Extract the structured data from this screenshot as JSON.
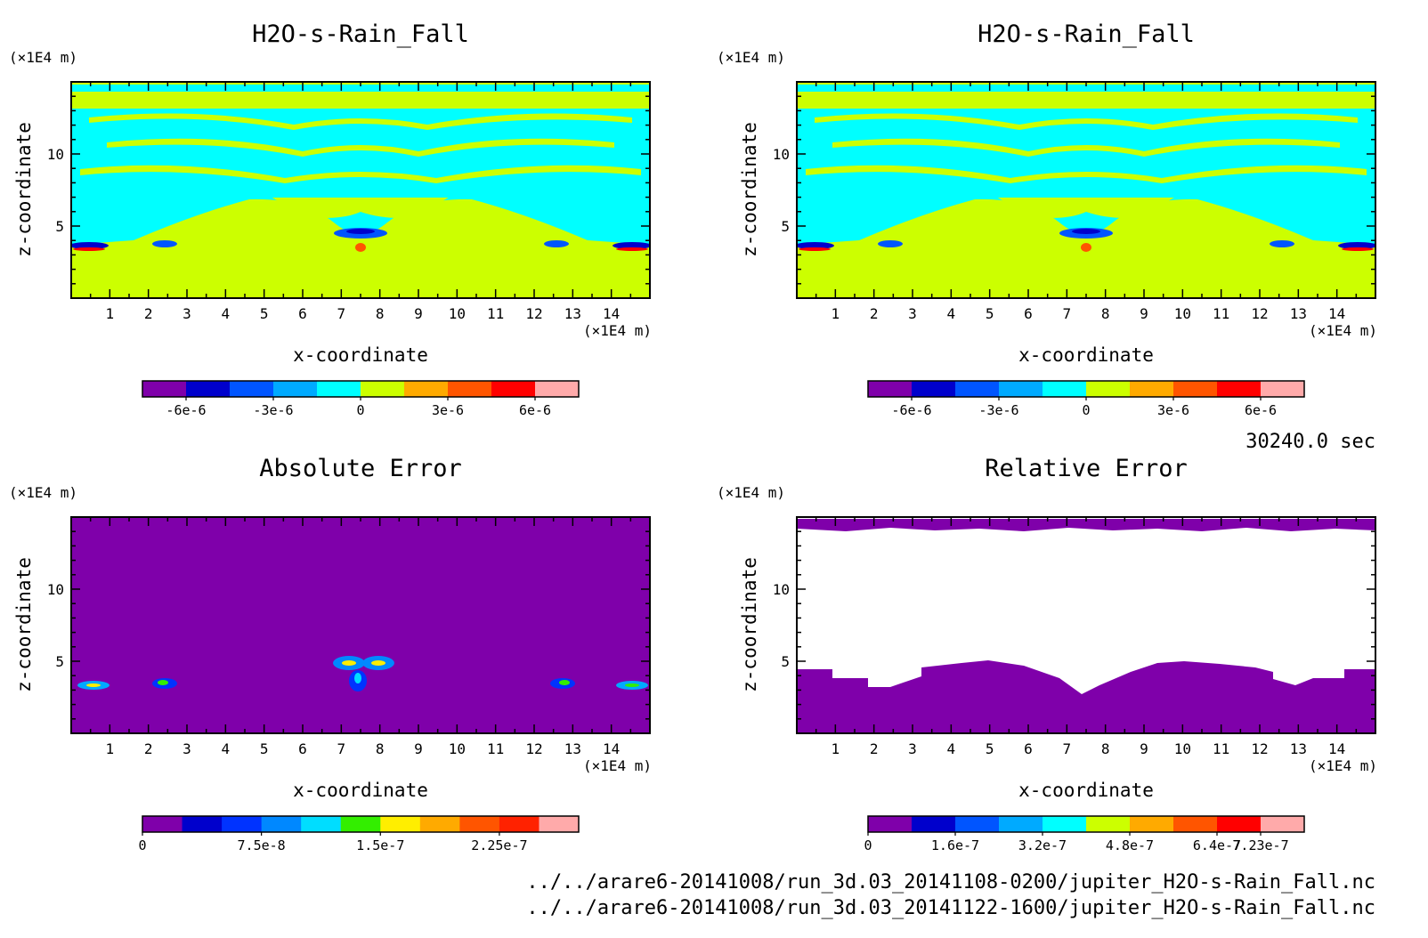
{
  "time_label": "30240.0 sec",
  "file_paths": [
    "../../arare6-20141008/run_3d.03_20141108-0200/jupiter_H2O-s-Rain_Fall.nc",
    "../../arare6-20141008/run_3d.03_20141122-1600/jupiter_H2O-s-Rain_Fall.nc"
  ],
  "colors": {
    "cyan": "#00ffff",
    "yellow_green": "#ccff00",
    "purple": "#7f00aa",
    "white": "#ffffff"
  },
  "chart_data": [
    {
      "type": "heatmap",
      "title": "H2O-s-Rain_Fall",
      "xlabel": "x-coordinate",
      "ylabel": "z-coordinate",
      "x_unit": "(×1E4 m)",
      "y_unit": "(×1E4 m)",
      "xlim": [
        0,
        15
      ],
      "ylim": [
        0,
        15
      ],
      "x_ticks": [
        1,
        2,
        3,
        4,
        5,
        6,
        7,
        8,
        9,
        10,
        11,
        12,
        13,
        14
      ],
      "y_ticks": [
        5,
        10
      ],
      "colorbar": {
        "colors": [
          "#7f00aa",
          "#0000cc",
          "#0055ff",
          "#00aaff",
          "#00ffff",
          "#ccff00",
          "#ffaa00",
          "#ff5500",
          "#ff0000",
          "#ffaaaa"
        ],
        "tick_labels": [
          "-6e-6",
          "-3e-6",
          "0",
          "3e-6",
          "6e-6"
        ],
        "tick_positions": [
          1,
          3,
          5,
          7,
          9
        ]
      }
    },
    {
      "type": "heatmap",
      "title": "H2O-s-Rain_Fall",
      "xlabel": "x-coordinate",
      "ylabel": "z-coordinate",
      "x_unit": "(×1E4 m)",
      "y_unit": "(×1E4 m)",
      "xlim": [
        0,
        15
      ],
      "ylim": [
        0,
        15
      ],
      "x_ticks": [
        1,
        2,
        3,
        4,
        5,
        6,
        7,
        8,
        9,
        10,
        11,
        12,
        13,
        14
      ],
      "y_ticks": [
        5,
        10
      ],
      "colorbar": {
        "colors": [
          "#7f00aa",
          "#0000cc",
          "#0055ff",
          "#00aaff",
          "#00ffff",
          "#ccff00",
          "#ffaa00",
          "#ff5500",
          "#ff0000",
          "#ffaaaa"
        ],
        "tick_labels": [
          "-6e-6",
          "-3e-6",
          "0",
          "3e-6",
          "6e-6"
        ],
        "tick_positions": [
          1,
          3,
          5,
          7,
          9
        ]
      }
    },
    {
      "type": "heatmap",
      "title": "Absolute Error",
      "xlabel": "x-coordinate",
      "ylabel": "z-coordinate",
      "x_unit": "(×1E4 m)",
      "y_unit": "(×1E4 m)",
      "xlim": [
        0,
        15
      ],
      "ylim": [
        0,
        15
      ],
      "x_ticks": [
        1,
        2,
        3,
        4,
        5,
        6,
        7,
        8,
        9,
        10,
        11,
        12,
        13,
        14
      ],
      "y_ticks": [
        5,
        10
      ],
      "colorbar": {
        "colors": [
          "#7f00aa",
          "#0000cc",
          "#0033ff",
          "#0088ff",
          "#00ddff",
          "#33ee00",
          "#ffee00",
          "#ffaa00",
          "#ff5500",
          "#ff2200",
          "#ffaaaa"
        ],
        "tick_labels": [
          "0",
          "7.5e-8",
          "1.5e-7",
          "2.25e-7"
        ],
        "tick_positions": [
          0,
          3,
          6,
          9
        ]
      }
    },
    {
      "type": "heatmap",
      "title": "Relative Error",
      "xlabel": "x-coordinate",
      "ylabel": "z-coordinate",
      "x_unit": "(×1E4 m)",
      "y_unit": "(×1E4 m)",
      "xlim": [
        0,
        15
      ],
      "ylim": [
        0,
        15
      ],
      "x_ticks": [
        1,
        2,
        3,
        4,
        5,
        6,
        7,
        8,
        9,
        10,
        11,
        12,
        13,
        14
      ],
      "y_ticks": [
        5,
        10
      ],
      "colorbar": {
        "colors": [
          "#7f00aa",
          "#0000cc",
          "#0055ff",
          "#00aaff",
          "#00ffff",
          "#ccff00",
          "#ffaa00",
          "#ff5500",
          "#ff0000",
          "#ffaaaa"
        ],
        "tick_labels": [
          "0",
          "1.6e-7",
          "3.2e-7",
          "4.8e-7",
          "6.4e-7",
          "7.23e-7"
        ],
        "tick_positions": [
          0,
          2,
          4,
          6,
          8,
          9
        ]
      }
    }
  ]
}
